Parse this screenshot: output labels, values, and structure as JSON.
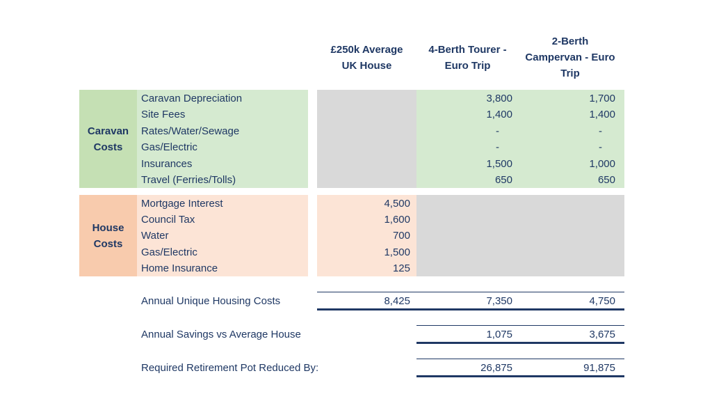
{
  "headers": {
    "col1": [
      "£250k Average",
      "UK House"
    ],
    "col2": [
      "4-Berth Tourer -",
      "Euro Trip"
    ],
    "col3": [
      "2-Berth",
      "Campervan - Euro",
      "Trip"
    ]
  },
  "caravan": {
    "label": [
      "Caravan",
      "Costs"
    ],
    "rows": [
      {
        "label": "Caravan Depreciation",
        "tourer": "3,800",
        "campervan": "1,700"
      },
      {
        "label": "Site Fees",
        "tourer": "1,400",
        "campervan": "1,400"
      },
      {
        "label": "Rates/Water/Sewage",
        "tourer": "-",
        "campervan": "-"
      },
      {
        "label": "Gas/Electric",
        "tourer": "-",
        "campervan": "-"
      },
      {
        "label": "Insurances",
        "tourer": "1,500",
        "campervan": "1,000"
      },
      {
        "label": "Travel (Ferries/Tolls)",
        "tourer": "650",
        "campervan": "650"
      }
    ]
  },
  "house": {
    "label": [
      "House",
      "Costs"
    ],
    "rows": [
      {
        "label": "Mortgage Interest",
        "house": "4,500"
      },
      {
        "label": "Council Tax",
        "house": "1,600"
      },
      {
        "label": "Water",
        "house": "700"
      },
      {
        "label": "Gas/Electric",
        "house": "1,500"
      },
      {
        "label": "Home Insurance",
        "house": "125"
      }
    ]
  },
  "summary": {
    "annual_costs": {
      "label": "Annual Unique Housing Costs",
      "house": "8,425",
      "tourer": "7,350",
      "campervan": "4,750"
    },
    "annual_savings": {
      "label": "Annual Savings vs Average House",
      "tourer": "1,075",
      "campervan": "3,675"
    },
    "retirement": {
      "label": "Required Retirement Pot Reduced By:",
      "tourer": "26,875",
      "campervan": "91,875"
    }
  },
  "colors": {
    "text": "#1f3864",
    "caravan_bg": "#d5ead0",
    "caravan_label_bg": "#c5e0b4",
    "house_bg": "#fce4d6",
    "house_label_bg": "#f8cbad",
    "grey": "#d9d9d9"
  }
}
